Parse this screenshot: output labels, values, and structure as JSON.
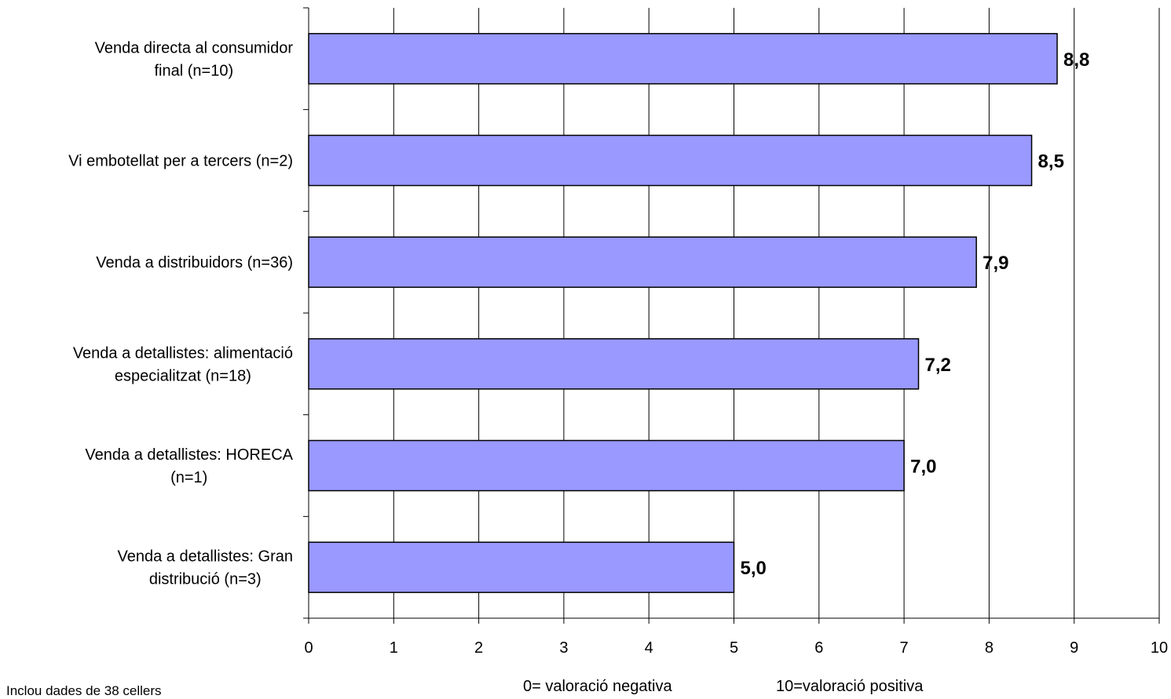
{
  "chart_data": {
    "type": "bar",
    "orientation": "horizontal",
    "categories": [
      [
        "Venda directa al consumidor",
        "final (n=10)"
      ],
      [
        "Vi embotellat per a tercers (n=2)"
      ],
      [
        "Venda a distribuidors (n=36)"
      ],
      [
        "Venda a detallistes: alimentació",
        "especialitzat (n=18)"
      ],
      [
        "Venda a detallistes: HORECA",
        "(n=1)"
      ],
      [
        "Venda a detallistes: Gran",
        "distribució (n=3)"
      ]
    ],
    "values": [
      8.8,
      8.5,
      7.85,
      7.17,
      7.0,
      5.0
    ],
    "data_labels": [
      "8,8",
      "8,5",
      "7,9",
      "7,2",
      "7,0",
      "5,0"
    ],
    "xlim": [
      0,
      10
    ],
    "x_ticks": [
      "0",
      "1",
      "2",
      "3",
      "4",
      "5",
      "6",
      "7",
      "8",
      "9",
      "10"
    ],
    "grid": "vertical",
    "bar_color": "#9999ff",
    "bar_edge_color": "#000000"
  },
  "footer": {
    "note": "Inclou dades de 38 cellers",
    "scale_negative": "0= valoració negativa",
    "scale_positive": "10=valoració positiva"
  }
}
